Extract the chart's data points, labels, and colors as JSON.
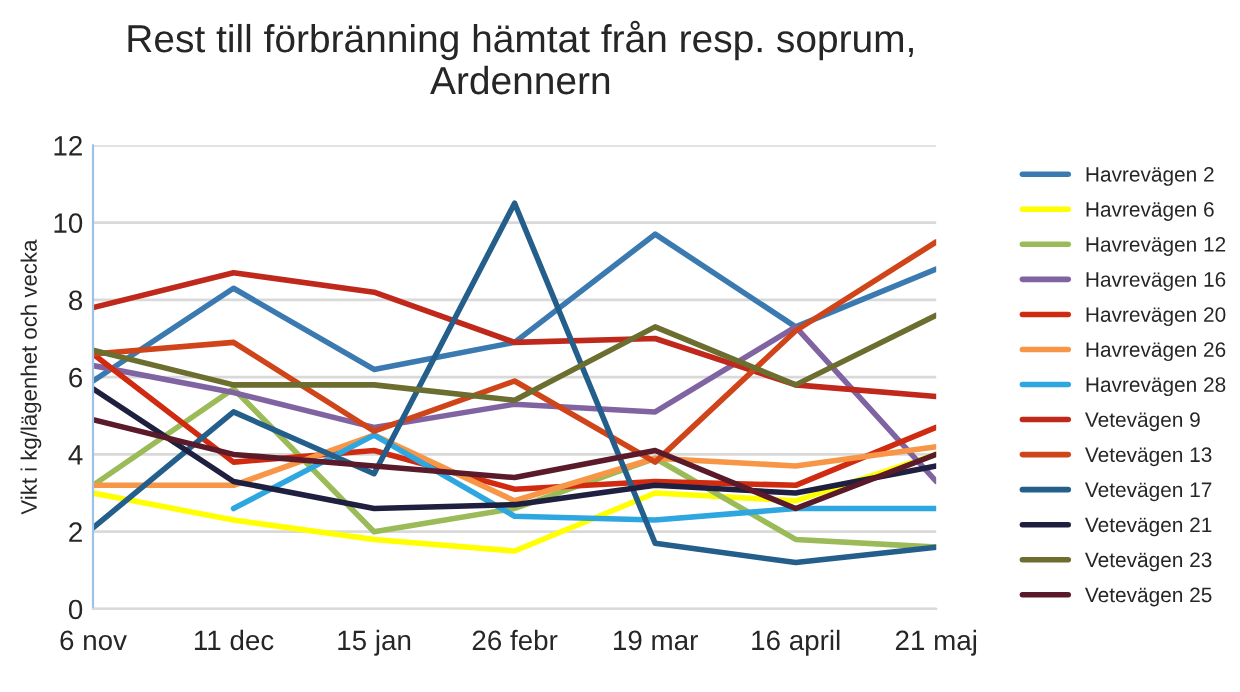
{
  "chart_data": {
    "type": "line",
    "title": "Rest till förbränning hämtat från resp. soprum,\nArdennern",
    "ylabel": "Vikt i kg/lägenhet och vecka",
    "categories": [
      "6 nov",
      "11 dec",
      "15 jan",
      "26 febr",
      "19 mar",
      "16 april",
      "21 maj"
    ],
    "ylim": [
      0,
      12
    ],
    "yticks": [
      0,
      2,
      4,
      6,
      8,
      10,
      12
    ],
    "grid": "y",
    "legend": "right",
    "marker": "none",
    "line_style": "solid",
    "series": [
      {
        "name": "Havrevägen 2",
        "color": "#3a7ab0",
        "values": [
          5.9,
          8.3,
          6.2,
          6.9,
          9.7,
          7.3,
          8.8
        ]
      },
      {
        "name": "Havrevägen 6",
        "color": "#ffff00",
        "values": [
          3.0,
          2.3,
          1.8,
          1.5,
          3.0,
          2.8,
          4.0
        ]
      },
      {
        "name": "Havrevägen 12",
        "color": "#9bbb59",
        "values": [
          3.2,
          5.7,
          2.0,
          2.6,
          3.9,
          1.8,
          1.6
        ]
      },
      {
        "name": "Havrevägen 16",
        "color": "#8064a2",
        "values": [
          6.3,
          5.6,
          4.7,
          5.3,
          5.1,
          7.3,
          3.3
        ]
      },
      {
        "name": "Havrevägen 20",
        "color": "#d02a10",
        "values": [
          6.6,
          3.8,
          4.1,
          3.1,
          3.3,
          3.2,
          4.7
        ]
      },
      {
        "name": "Havrevägen 26",
        "color": "#f79646",
        "values": [
          3.2,
          3.2,
          4.5,
          2.8,
          3.9,
          3.7,
          4.2
        ]
      },
      {
        "name": "Havrevägen 28",
        "color": "#2ea6e0",
        "values": [
          null,
          2.6,
          4.5,
          2.4,
          2.3,
          2.6,
          2.6
        ]
      },
      {
        "name": "Vetevägen 9",
        "color": "#c0281c",
        "values": [
          7.8,
          8.7,
          8.2,
          6.9,
          7.0,
          5.8,
          5.5
        ]
      },
      {
        "name": "Vetevägen 13",
        "color": "#d0441a",
        "values": [
          6.6,
          6.9,
          4.6,
          5.9,
          3.8,
          7.2,
          9.5
        ]
      },
      {
        "name": "Vetevägen 17",
        "color": "#245e8a",
        "values": [
          2.1,
          5.1,
          3.5,
          10.5,
          1.7,
          1.2,
          1.6
        ]
      },
      {
        "name": "Vetevägen 21",
        "color": "#1f1f3f",
        "values": [
          5.7,
          3.3,
          2.6,
          2.7,
          3.2,
          3.0,
          3.7
        ]
      },
      {
        "name": "Vetevägen 23",
        "color": "#6b6e2e",
        "values": [
          6.7,
          5.8,
          5.8,
          5.4,
          7.3,
          5.8,
          7.6
        ]
      },
      {
        "name": "Vetevägen 25",
        "color": "#5a1a2a",
        "values": [
          4.9,
          4.0,
          3.7,
          3.4,
          4.1,
          2.6,
          4.0
        ]
      }
    ]
  }
}
